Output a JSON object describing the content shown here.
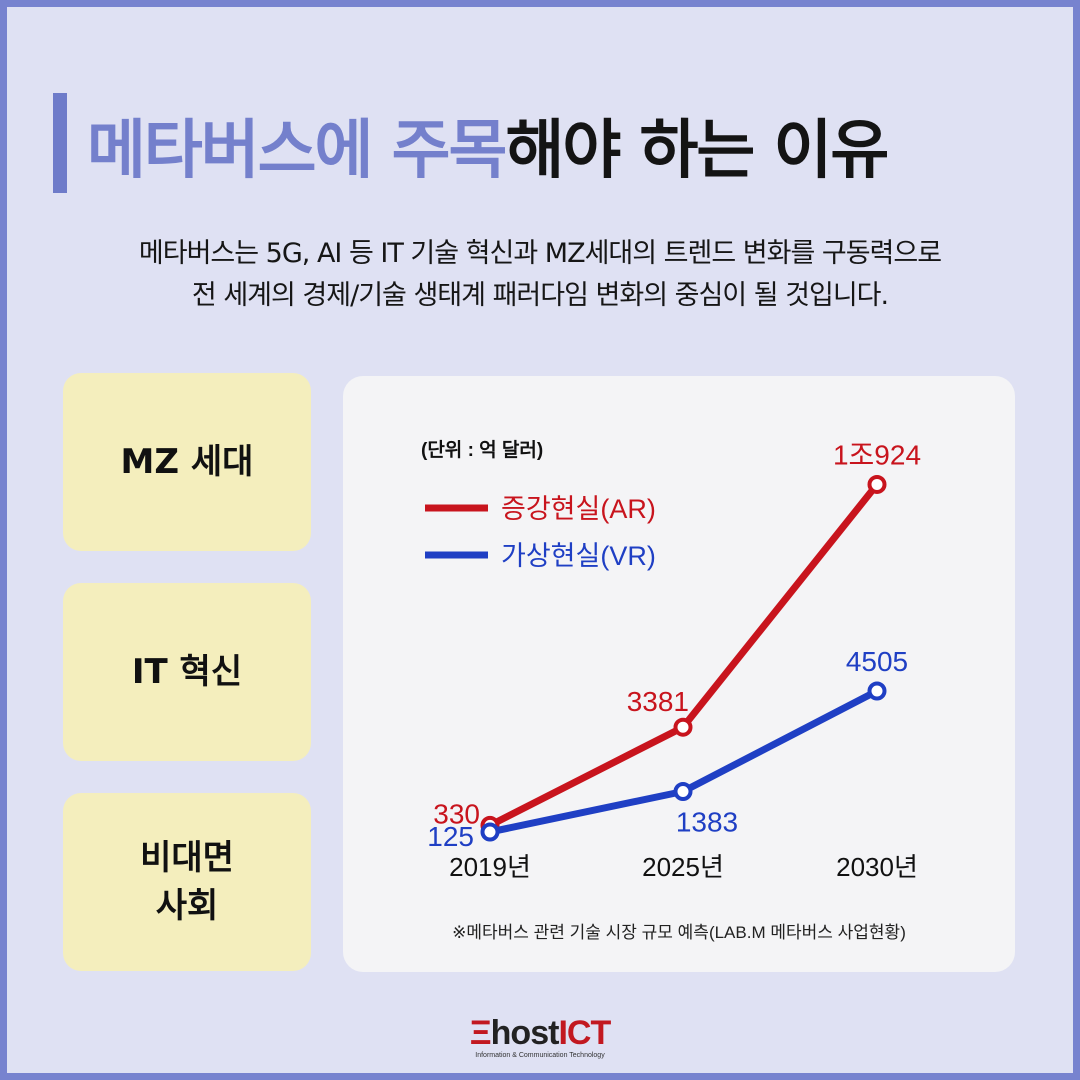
{
  "title": {
    "accent": "메타버스에 주목",
    "rest": "해야 하는 이유"
  },
  "subtitle": {
    "line1": "메타버스는 5G, AI 등 IT 기술 혁신과 MZ세대의 트렌드 변화를 구동력으로",
    "line2": "전 세계의 경제/기술 생태계 패러다임 변화의 중심이 될 것입니다."
  },
  "cards": [
    {
      "label": "MZ 세대"
    },
    {
      "label": "IT 혁신"
    },
    {
      "label_line1": "비대면",
      "label_line2": "사회"
    }
  ],
  "logo": {
    "e": "Ξ",
    "host": "host",
    "ict": "ICT",
    "tagline": "Information & Communication Technology"
  },
  "colors": {
    "frame_border": "#7783cf",
    "background": "#dfe1f3",
    "title_accent": "#7480cc",
    "card": "#f4eebd",
    "panel": "#f4f4f6",
    "ar": "#c8141d",
    "vr": "#1f3fc4",
    "logo_red": "#c21820"
  },
  "chart_data": {
    "type": "line",
    "unit_note": "(단위 : 억 달러)",
    "categories": [
      "2019년",
      "2025년",
      "2030년"
    ],
    "series": [
      {
        "name": "증강현실(AR)",
        "color": "#c8141d",
        "values": [
          330,
          3381,
          10924
        ],
        "labels": [
          "330",
          "3381",
          "1조924"
        ]
      },
      {
        "name": "가상현실(VR)",
        "color": "#1f3fc4",
        "values": [
          125,
          1383,
          4505
        ],
        "labels": [
          "125",
          "1383",
          "4505"
        ]
      }
    ],
    "ylim": [
      0,
      11000
    ],
    "grid": false,
    "legend_position": "top-left",
    "source_note": "※메타버스 관련 기술 시장 규모 예측(LAB.M 메타버스 사업현황)"
  }
}
